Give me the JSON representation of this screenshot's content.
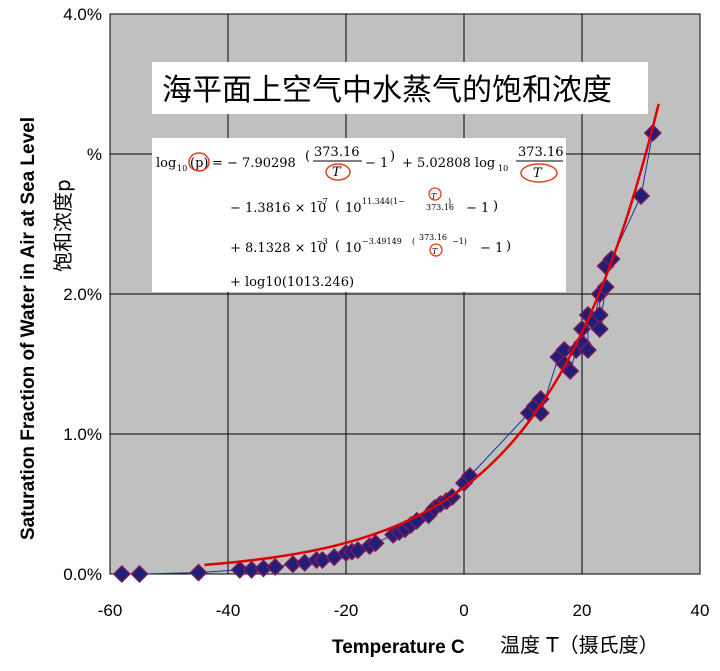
{
  "chart_data": {
    "type": "scatter",
    "title": "海平面上空气中水蒸气的饱和浓度",
    "xlabel": "Temperature C",
    "xlabel_cn": "温度 T（摄氏度）",
    "ylabel": "Saturation Fraction of Water in Air at Sea Level",
    "ylabel_cn": "饱和浓度p",
    "xlim": [
      -60,
      40
    ],
    "ylim": [
      0.0,
      4.0
    ],
    "x_ticks": [
      "-60",
      "-40",
      "-20",
      "0",
      "20",
      "40"
    ],
    "y_ticks": [
      "0.0%",
      "1.0%",
      "2.0%",
      "%",
      "4.0%"
    ],
    "grid": true,
    "colors": {
      "plot_bg": "#c0c0c0",
      "marker": "#1f1f7a",
      "marker_edge": "#7a1a5a",
      "fit_line": "#e00000",
      "data_line": "#2030a0",
      "highlight": "#e0401a"
    },
    "formula": {
      "line1": [
        "log",
        "10",
        "(p)",
        "= − 7.90298",
        "373.16",
        "T",
        "− 1",
        "+ 5.02808 log",
        "10",
        "373.16",
        "T"
      ],
      "line2": [
        "− 1.3816 × 10",
        "−7",
        "10",
        "11.344",
        "(1−",
        "T",
        "373.16",
        ")",
        "− 1"
      ],
      "line3": [
        "+ 8.1328 × 10",
        "−3",
        "10",
        "−3.49149",
        "(",
        "373.16",
        "T",
        "−1)",
        "− 1"
      ],
      "line4": "+ log10(1013.246)"
    },
    "series": [
      {
        "x": [
          -58,
          -55,
          -45,
          -38,
          -36,
          -34,
          -32,
          -29,
          -27,
          -25,
          -24,
          -22,
          -20,
          -19,
          -18,
          -16,
          -15,
          -12,
          -11,
          -10,
          -9,
          -8,
          -6,
          -5,
          -4,
          -3,
          -2,
          0,
          1,
          11,
          12,
          13,
          13,
          16,
          17,
          17,
          18,
          19,
          20,
          20,
          21,
          21,
          22,
          23,
          23,
          23,
          24,
          24,
          25,
          30,
          32
        ],
        "y": [
          0.0,
          0.0,
          0.01,
          0.03,
          0.03,
          0.04,
          0.05,
          0.07,
          0.08,
          0.1,
          0.1,
          0.12,
          0.15,
          0.16,
          0.17,
          0.2,
          0.22,
          0.28,
          0.3,
          0.32,
          0.35,
          0.38,
          0.42,
          0.47,
          0.5,
          0.52,
          0.55,
          0.65,
          0.7,
          1.15,
          1.2,
          1.25,
          1.15,
          1.55,
          1.6,
          1.5,
          1.45,
          1.6,
          1.65,
          1.75,
          1.6,
          1.85,
          1.8,
          2.0,
          1.85,
          1.75,
          2.05,
          2.2,
          2.25,
          2.7,
          3.15
        ]
      }
    ]
  }
}
